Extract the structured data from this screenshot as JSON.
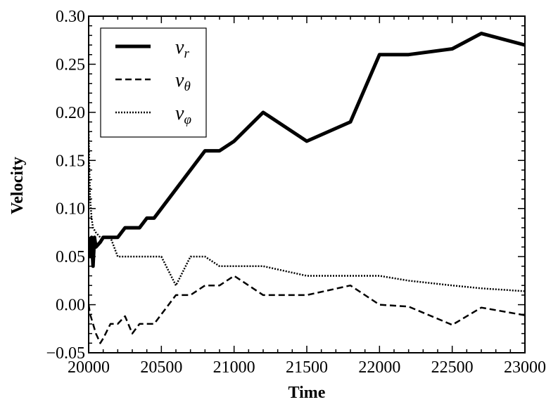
{
  "chart_data": {
    "type": "line",
    "xlabel": "Time",
    "ylabel": "Velocity",
    "xlim": [
      20000,
      23000
    ],
    "ylim": [
      -0.05,
      0.3
    ],
    "x_ticks": [
      20000,
      20500,
      21000,
      21500,
      22000,
      22500,
      23000
    ],
    "y_ticks": [
      -0.05,
      0.0,
      0.05,
      0.1,
      0.15,
      0.2,
      0.25,
      0.3
    ],
    "x_tick_labels": [
      "20000",
      "20500",
      "21000",
      "21500",
      "22000",
      "22500",
      "23000"
    ],
    "y_tick_labels": [
      "−0.05",
      "0.00",
      "0.05",
      "0.10",
      "0.15",
      "0.20",
      "0.25",
      "0.30"
    ],
    "grid": false,
    "legend_position": "top-left",
    "series": [
      {
        "name": "v",
        "subscript": "r",
        "style": "solid",
        "color": "#000000",
        "x": [
          20000,
          20010,
          20020,
          20030,
          20040,
          20050,
          20080,
          20100,
          20200,
          20250,
          20350,
          20400,
          20450,
          20800,
          20900,
          21000,
          21200,
          21500,
          21800,
          22000,
          22200,
          22500,
          22700,
          23000
        ],
        "y": [
          0.07,
          0.05,
          0.07,
          0.04,
          0.07,
          0.06,
          0.065,
          0.07,
          0.07,
          0.08,
          0.08,
          0.09,
          0.09,
          0.16,
          0.16,
          0.17,
          0.2,
          0.17,
          0.19,
          0.26,
          0.26,
          0.266,
          0.282,
          0.27
        ]
      },
      {
        "name": "v",
        "subscript": "θ",
        "style": "dashed",
        "color": "#000000",
        "x": [
          20000,
          20010,
          20030,
          20050,
          20080,
          20100,
          20150,
          20200,
          20250,
          20300,
          20350,
          20450,
          20600,
          20700,
          20800,
          20900,
          21000,
          21200,
          21500,
          21800,
          22000,
          22200,
          22500,
          22700,
          23000
        ],
        "y": [
          0.0,
          -0.01,
          -0.02,
          -0.03,
          -0.04,
          -0.035,
          -0.02,
          -0.02,
          -0.012,
          -0.03,
          -0.02,
          -0.02,
          0.01,
          0.01,
          0.02,
          0.02,
          0.03,
          0.01,
          0.01,
          0.02,
          0.0,
          -0.002,
          -0.021,
          -0.003,
          -0.011
        ]
      },
      {
        "name": "v",
        "subscript": "φ",
        "style": "dotted",
        "color": "#000000",
        "x": [
          20000,
          20005,
          20010,
          20020,
          20030,
          20050,
          20080,
          20100,
          20150,
          20200,
          20300,
          20400,
          20500,
          20600,
          20700,
          20800,
          20900,
          21000,
          21200,
          21500,
          21800,
          22000,
          22200,
          22500,
          22700,
          23000
        ],
        "y": [
          0.18,
          0.14,
          0.11,
          0.09,
          0.08,
          0.075,
          0.07,
          0.07,
          0.07,
          0.05,
          0.05,
          0.05,
          0.05,
          0.02,
          0.05,
          0.05,
          0.04,
          0.04,
          0.04,
          0.03,
          0.03,
          0.03,
          0.025,
          0.02,
          0.017,
          0.014
        ]
      }
    ]
  }
}
